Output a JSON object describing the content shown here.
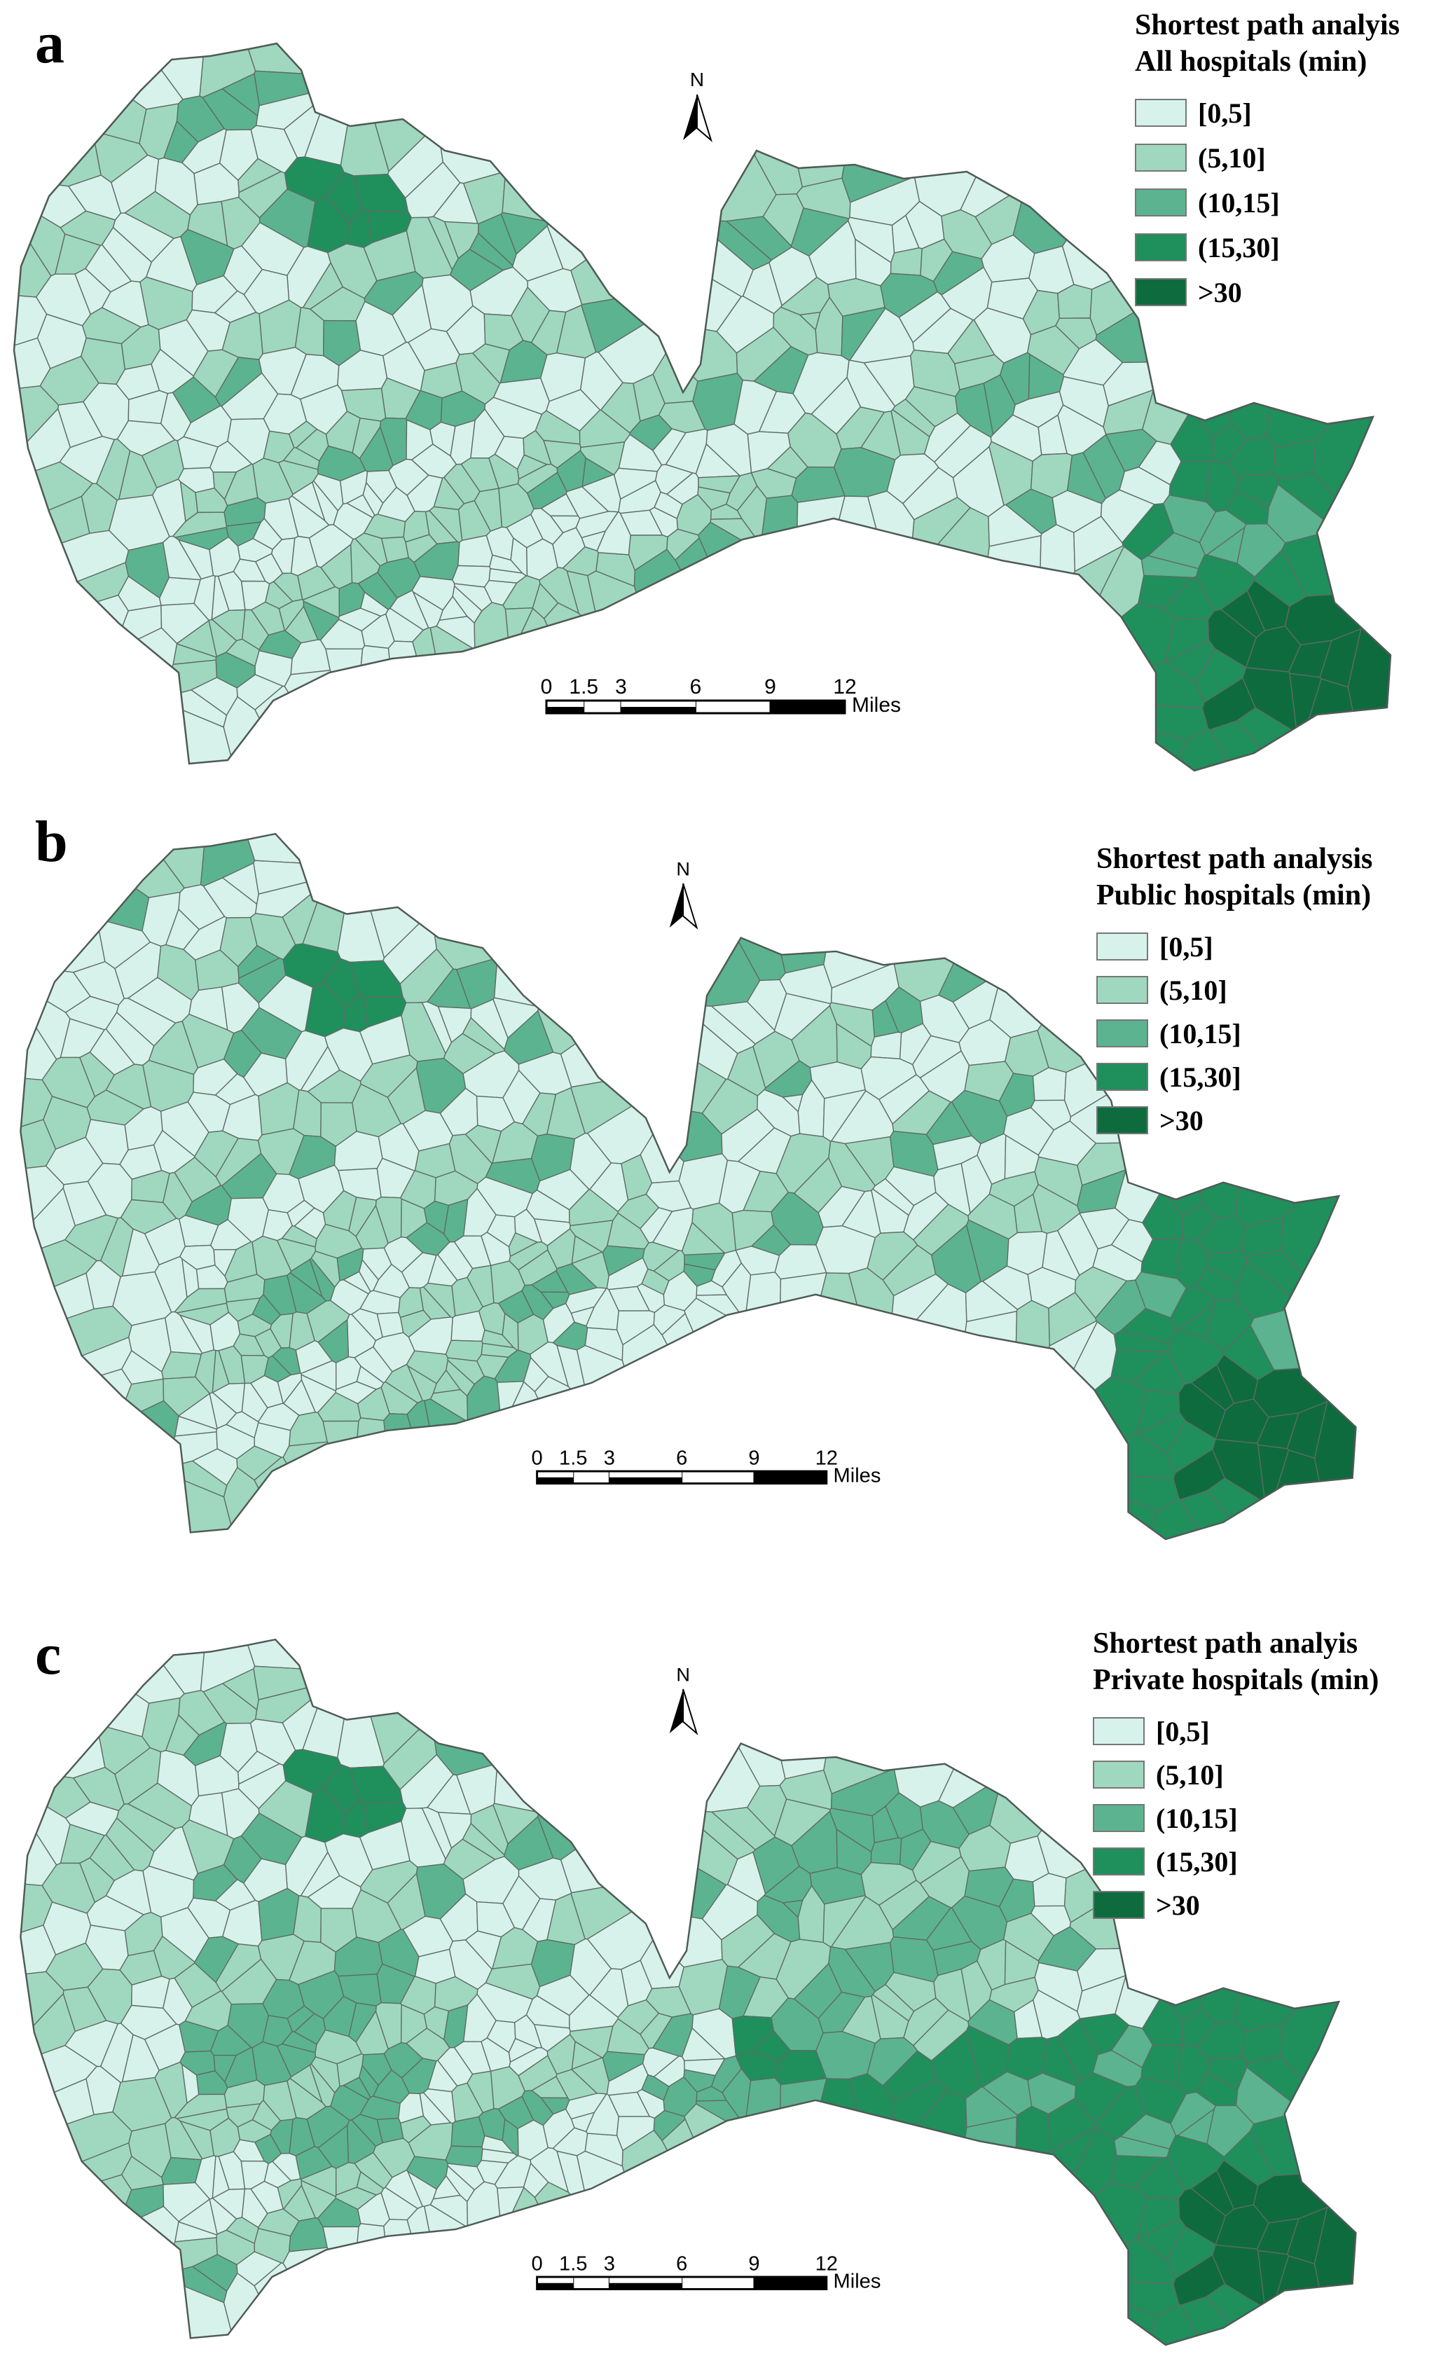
{
  "colors": {
    "c0": "#d7f2ea",
    "c1": "#9fd8bf",
    "c2": "#5bb48f",
    "c3": "#1f8f5c",
    "c4": "#0e6b3d",
    "border": "#5f6b66"
  },
  "legend_labels": [
    "[0,5]",
    "(5,10]",
    "(10,15]",
    "(15,30]",
    ">30"
  ],
  "north_label": "N",
  "scale": {
    "ticks": [
      "0",
      "1.5",
      "3",
      "6",
      "9",
      "12"
    ],
    "unit": "Miles"
  },
  "panels": [
    {
      "letter": "a",
      "title_line1": "Shortest path analyis",
      "title_line2": "All hospitals (min)"
    },
    {
      "letter": "b",
      "title_line1": "Shortest path analysis",
      "title_line2": "Public hospitals (min)"
    },
    {
      "letter": "c",
      "title_line1": "Shortest path analyis",
      "title_line2": "Private hospitals (min)"
    }
  ]
}
